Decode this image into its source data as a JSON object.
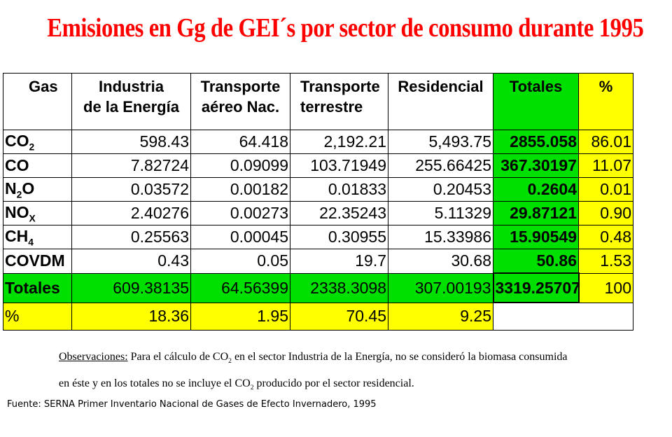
{
  "title": "Emisiones en Gg de GEI´s por sector de consumo durante 1995",
  "headers": {
    "gas": "Gas",
    "industria_1": "Industria",
    "industria_2": "de la Energía",
    "aereo_1": "Transporte",
    "aereo_2": "aéreo Nac.",
    "terrestre_1": "Transporte",
    "terrestre_2": "terrestre",
    "residencial": "Residencial",
    "totales": "Totales",
    "pct": "%"
  },
  "rows": [
    {
      "gas": "CO",
      "sub": "2",
      "industria": "598.43",
      "aereo": "64.418",
      "terrestre": "2,192.21",
      "residencial": "5,493.75",
      "total": "2855.058",
      "pct": "86.01"
    },
    {
      "gas": "CO",
      "sub": "",
      "industria": "7.82724",
      "aereo": "0.09099",
      "terrestre": "103.71949",
      "residencial": "255.66425",
      "total": "367.30197",
      "pct": "11.07"
    },
    {
      "gas": "N",
      "sub": "2",
      "suffix": "O",
      "industria": "0.03572",
      "aereo": "0.00182",
      "terrestre": "0.01833",
      "residencial": "0.20453",
      "total": "0.2604",
      "pct": "0.01"
    },
    {
      "gas": "NO",
      "sub": "X",
      "industria": "2.40276",
      "aereo": "0.00273",
      "terrestre": "22.35243",
      "residencial": "5.11329",
      "total": "29.87121",
      "pct": "0.90"
    },
    {
      "gas": "CH",
      "sub": "4",
      "industria": "0.25563",
      "aereo": "0.00045",
      "terrestre": "0.30955",
      "residencial": "15.33986",
      "total": "15.90549",
      "pct": "0.48"
    },
    {
      "gas": "COVDM",
      "sub": "",
      "industria": "0.43",
      "aereo": "0.05",
      "terrestre": "19.7",
      "residencial": "30.68",
      "total": "50.86",
      "pct": "1.53"
    }
  ],
  "totals_row": {
    "label": "Totales",
    "industria": "609.38135",
    "aereo": "64.56399",
    "terrestre": "2338.3098",
    "residencial": "307.00193",
    "total": "3319.25707",
    "pct": "100"
  },
  "pct_row": {
    "label": "%",
    "industria": "18.36",
    "aereo": "1.95",
    "terrestre": "70.45",
    "residencial": "9.25"
  },
  "notes": {
    "obs_label": "Observaciones:",
    "line1_a": " Para el cálculo de CO",
    "line1_sub": "2",
    "line1_b": " en el sector Industria de la Energía, no se consideró la biomasa consumida",
    "line2_a": "en éste y en los totales no se incluye el CO",
    "line2_sub": "2",
    "line2_b": " producido por el sector residencial."
  },
  "source": "Fuente: SERNA Primer Inventario Nacional de Gases de Efecto Invernadero, 1995",
  "colors": {
    "title": "#ff0000",
    "green": "#00e000",
    "yellow": "#ffff00"
  }
}
